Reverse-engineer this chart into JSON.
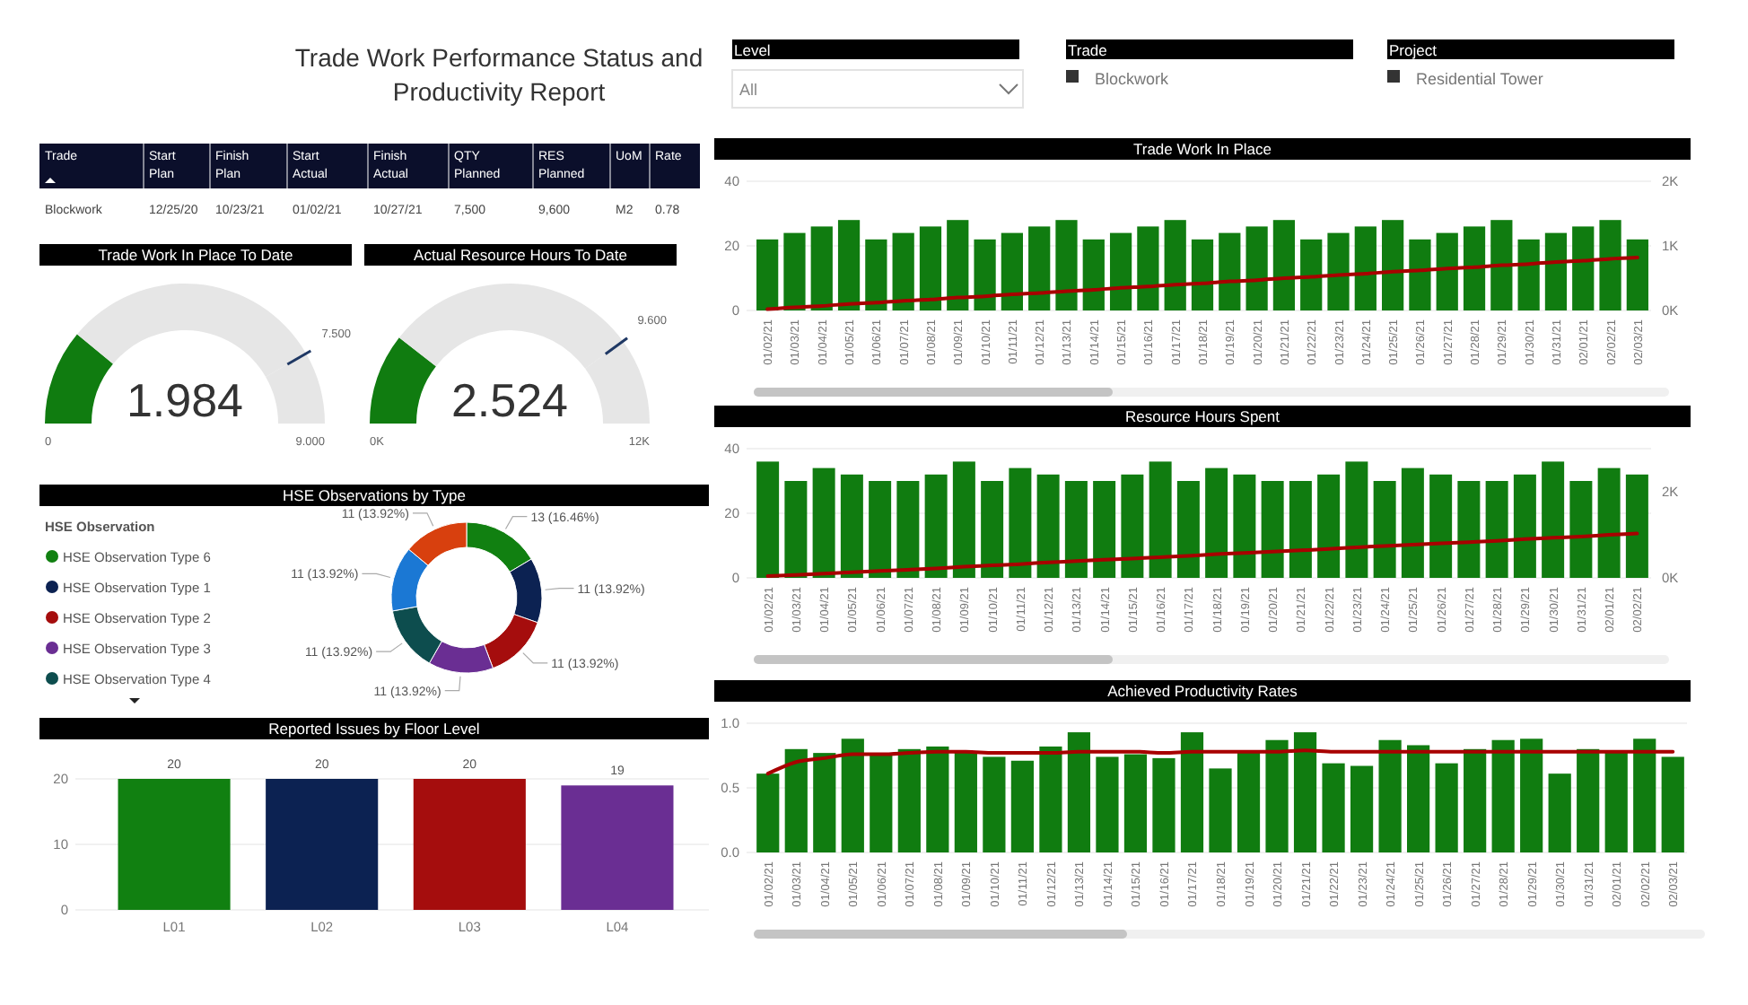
{
  "chart_data": [
    {
      "type": "other",
      "title": "Trade Work Performance Status and Productivity Report",
      "annotations": [
        "Level",
        "All",
        "Trade",
        "Blockwork",
        "Project",
        "Residential Tower"
      ]
    },
    {
      "type": "other",
      "categories": [
        "Trade",
        "Start Plan",
        "Finish Plan",
        "Start Actual",
        "Finish Actual",
        "QTY Planned",
        "RES Planned",
        "UoM",
        "Rate"
      ],
      "annotations": [
        "Blockwork",
        "12/25/20",
        "10/23/21",
        "01/02/21",
        "10/27/21",
        "7,500",
        "9,600",
        "M2",
        "0.78"
      ]
    },
    {
      "type": "donut",
      "title": "Trade Work In Place To Date",
      "categories": [
        null,
        null,
        null
      ],
      "values": [
        22.04,
        61.29,
        16.67
      ],
      "colors": [
        "#107c10",
        "#e6e6e6",
        "#e6e6e6"
      ],
      "annotations": [
        "1.984",
        "0",
        "9.000",
        "7.500"
      ]
    },
    {
      "type": "donut",
      "title": "Actual Resource Hours To Date",
      "categories": [
        null,
        null,
        null
      ],
      "values": [
        21.03,
        58.97,
        20
      ],
      "colors": [
        "#107c10",
        "#e6e6e6",
        "#e6e6e6"
      ],
      "annotations": [
        "2.524",
        "0K",
        "12K",
        "9.600"
      ]
    },
    {
      "type": "donut",
      "title": "HSE Observations by Type",
      "legend_title": "HSE Observation",
      "legend": "left",
      "categories": [
        "HSE Observation Type 6",
        "HSE Observation Type 1",
        "HSE Observation Type 2",
        "HSE Observation Type 3",
        "HSE Observation Type 4",
        null,
        null
      ],
      "values": [
        13,
        11,
        11,
        11,
        11,
        11,
        11
      ],
      "value_labels": [
        "13 (16.46%)",
        "11 (13.92%)",
        "11 (13.92%)",
        "11 (13.92%)",
        "11 (13.92%)",
        "11 (13.92%)",
        "11 (13.92%)"
      ],
      "colors": [
        "#118011",
        "#0c2252",
        "#a50d0d",
        "#6a2e93",
        "#0d4d4e",
        "#1b78d4",
        "#d8400e"
      ]
    },
    {
      "type": "bar",
      "title": "Reported Issues by Floor Level",
      "categories": [
        "L01",
        "L02",
        "L03",
        "L04"
      ],
      "values": [
        20,
        20,
        20,
        19
      ],
      "colors": [
        "#118011",
        "#0c2252",
        "#a50d0d",
        "#6a2e93"
      ],
      "ylim": [
        0,
        20
      ],
      "yticks": [
        0,
        10,
        20
      ],
      "grid": "y",
      "data_labels": true
    },
    {
      "type": "bar",
      "title": "Trade Work In Place",
      "grid": "y",
      "categories": [
        "01/02/21",
        "01/03/21",
        "01/04/21",
        "01/05/21",
        "01/06/21",
        "01/07/21",
        "01/08/21",
        "01/09/21",
        "01/10/21",
        "01/11/21",
        "01/12/21",
        "01/13/21",
        "01/14/21",
        "01/15/21",
        "01/16/21",
        "01/17/21",
        "01/18/21",
        "01/19/21",
        "01/20/21",
        "01/21/21",
        "01/22/21",
        "01/23/21",
        "01/24/21",
        "01/25/21",
        "01/26/21",
        "01/27/21",
        "01/28/21",
        "01/29/21",
        "01/30/21",
        "01/31/21",
        "02/01/21",
        "02/02/21",
        "02/03/21"
      ],
      "ylim": [
        0,
        40
      ],
      "yticks": [
        0,
        20,
        40
      ],
      "y2lim": [
        0,
        2000
      ],
      "y2ticks": [
        {
          "value": 0,
          "label": "0K"
        },
        {
          "value": 1000,
          "label": "1K"
        },
        {
          "value": 2000,
          "label": "2K"
        }
      ],
      "series": [
        {
          "type": "bar",
          "color": "#107c10",
          "values": [
            22,
            24,
            26,
            28,
            22,
            24,
            26,
            28,
            22,
            24,
            26,
            28,
            22,
            24,
            26,
            28,
            22,
            24,
            26,
            28,
            22,
            24,
            26,
            28,
            22,
            24,
            26,
            28,
            22,
            24,
            26,
            28,
            22
          ]
        },
        {
          "type": "line",
          "axis": "y2",
          "color": "#a80000",
          "values": [
            20,
            50,
            70,
            100,
            120,
            150,
            170,
            200,
            220,
            250,
            270,
            300,
            320,
            350,
            370,
            400,
            420,
            450,
            470,
            500,
            520,
            550,
            570,
            600,
            620,
            650,
            670,
            700,
            720,
            750,
            770,
            800,
            820
          ]
        }
      ]
    },
    {
      "type": "bar",
      "title": "Resource Hours Spent",
      "grid": "y",
      "categories": [
        "01/02/21",
        "01/03/21",
        "01/04/21",
        "01/05/21",
        "01/06/21",
        "01/07/21",
        "01/08/21",
        "01/09/21",
        "01/10/21",
        "01/11/21",
        "01/12/21",
        "01/13/21",
        "01/14/21",
        "01/15/21",
        "01/16/21",
        "01/17/21",
        "01/18/21",
        "01/19/21",
        "01/20/21",
        "01/21/21",
        "01/22/21",
        "01/23/21",
        "01/24/21",
        "01/25/21",
        "01/26/21",
        "01/27/21",
        "01/28/21",
        "01/29/21",
        "01/30/21",
        "01/31/21",
        "02/01/21",
        "02/02/21"
      ],
      "ylim": [
        0,
        40
      ],
      "yticks": [
        0,
        20,
        40
      ],
      "y2lim": [
        0,
        3000
      ],
      "y2ticks": [
        {
          "value": 0,
          "label": "0K"
        },
        {
          "value": 2000,
          "label": "2K"
        }
      ],
      "series": [
        {
          "type": "bar",
          "color": "#107c10",
          "values": [
            36,
            30,
            34,
            32,
            30,
            30,
            32,
            36,
            30,
            34,
            32,
            30,
            30,
            32,
            36,
            30,
            34,
            32,
            30,
            30,
            32,
            36,
            30,
            34,
            32,
            30,
            30,
            32,
            36,
            30,
            34,
            32
          ]
        },
        {
          "type": "line",
          "axis": "y2",
          "color": "#a80000",
          "values": [
            40,
            70,
            100,
            130,
            160,
            190,
            220,
            260,
            290,
            320,
            360,
            390,
            420,
            450,
            480,
            510,
            550,
            580,
            610,
            640,
            670,
            710,
            740,
            770,
            800,
            830,
            860,
            900,
            930,
            960,
            1000,
            1030
          ]
        }
      ]
    },
    {
      "type": "bar",
      "title": "Achieved Productivity Rates",
      "grid": "y",
      "categories": [
        "01/02/21",
        "01/03/21",
        "01/04/21",
        "01/05/21",
        "01/06/21",
        "01/07/21",
        "01/08/21",
        "01/09/21",
        "01/10/21",
        "01/11/21",
        "01/12/21",
        "01/13/21",
        "01/14/21",
        "01/15/21",
        "01/16/21",
        "01/17/21",
        "01/18/21",
        "01/19/21",
        "01/20/21",
        "01/21/21",
        "01/22/21",
        "01/23/21",
        "01/24/21",
        "01/25/21",
        "01/26/21",
        "01/27/21",
        "01/28/21",
        "01/29/21",
        "01/30/21",
        "01/31/21",
        "02/01/21",
        "02/02/21",
        "02/03/21"
      ],
      "ylim": [
        0,
        1
      ],
      "yticks": [
        {
          "value": 0,
          "label": "0.0"
        },
        {
          "value": 0.5,
          "label": "0.5"
        },
        {
          "value": 1,
          "label": "1.0"
        }
      ],
      "series": [
        {
          "type": "bar",
          "color": "#107c10",
          "values": [
            0.61,
            0.8,
            0.77,
            0.88,
            0.75,
            0.8,
            0.82,
            0.78,
            0.74,
            0.71,
            0.82,
            0.93,
            0.74,
            0.76,
            0.73,
            0.93,
            0.65,
            0.78,
            0.87,
            0.93,
            0.69,
            0.67,
            0.87,
            0.83,
            0.69,
            0.8,
            0.87,
            0.88,
            0.61,
            0.8,
            0.78,
            0.88,
            0.74
          ]
        },
        {
          "type": "line",
          "color": "#a80000",
          "values": [
            0.61,
            0.7,
            0.73,
            0.76,
            0.76,
            0.77,
            0.78,
            0.78,
            0.77,
            0.77,
            0.77,
            0.78,
            0.78,
            0.78,
            0.77,
            0.78,
            0.78,
            0.78,
            0.78,
            0.79,
            0.78,
            0.78,
            0.78,
            0.78,
            0.78,
            0.78,
            0.78,
            0.78,
            0.78,
            0.78,
            0.78,
            0.78,
            0.78
          ]
        }
      ]
    }
  ]
}
